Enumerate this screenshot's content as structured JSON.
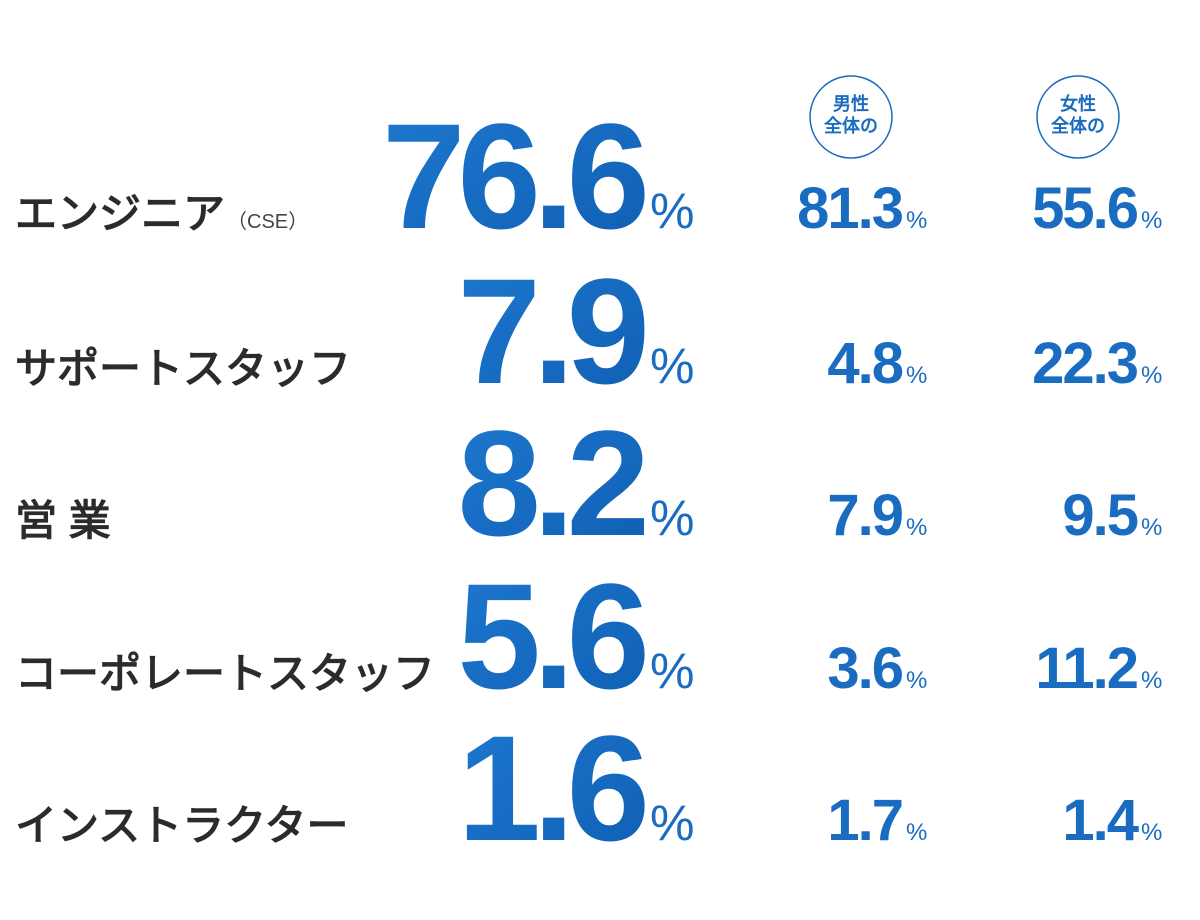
{
  "headers": {
    "male": [
      "男性",
      "全体の"
    ],
    "female": [
      "女性",
      "全体の"
    ]
  },
  "unit": "%",
  "rows": [
    {
      "label": "エンジニア",
      "note": "（CSE）",
      "total": 76.6,
      "male": 81.3,
      "female": 55.6
    },
    {
      "label": "サポートスタッフ",
      "total": 7.9,
      "male": 4.8,
      "female": 22.3
    },
    {
      "label": "営 業",
      "total": 8.2,
      "male": 7.9,
      "female": 9.5
    },
    {
      "label": "コーポレートスタッフ",
      "total": 5.6,
      "male": 3.6,
      "female": 11.2
    },
    {
      "label": "インストラクター",
      "total": 1.6,
      "male": 1.7,
      "female": 1.4
    }
  ]
}
